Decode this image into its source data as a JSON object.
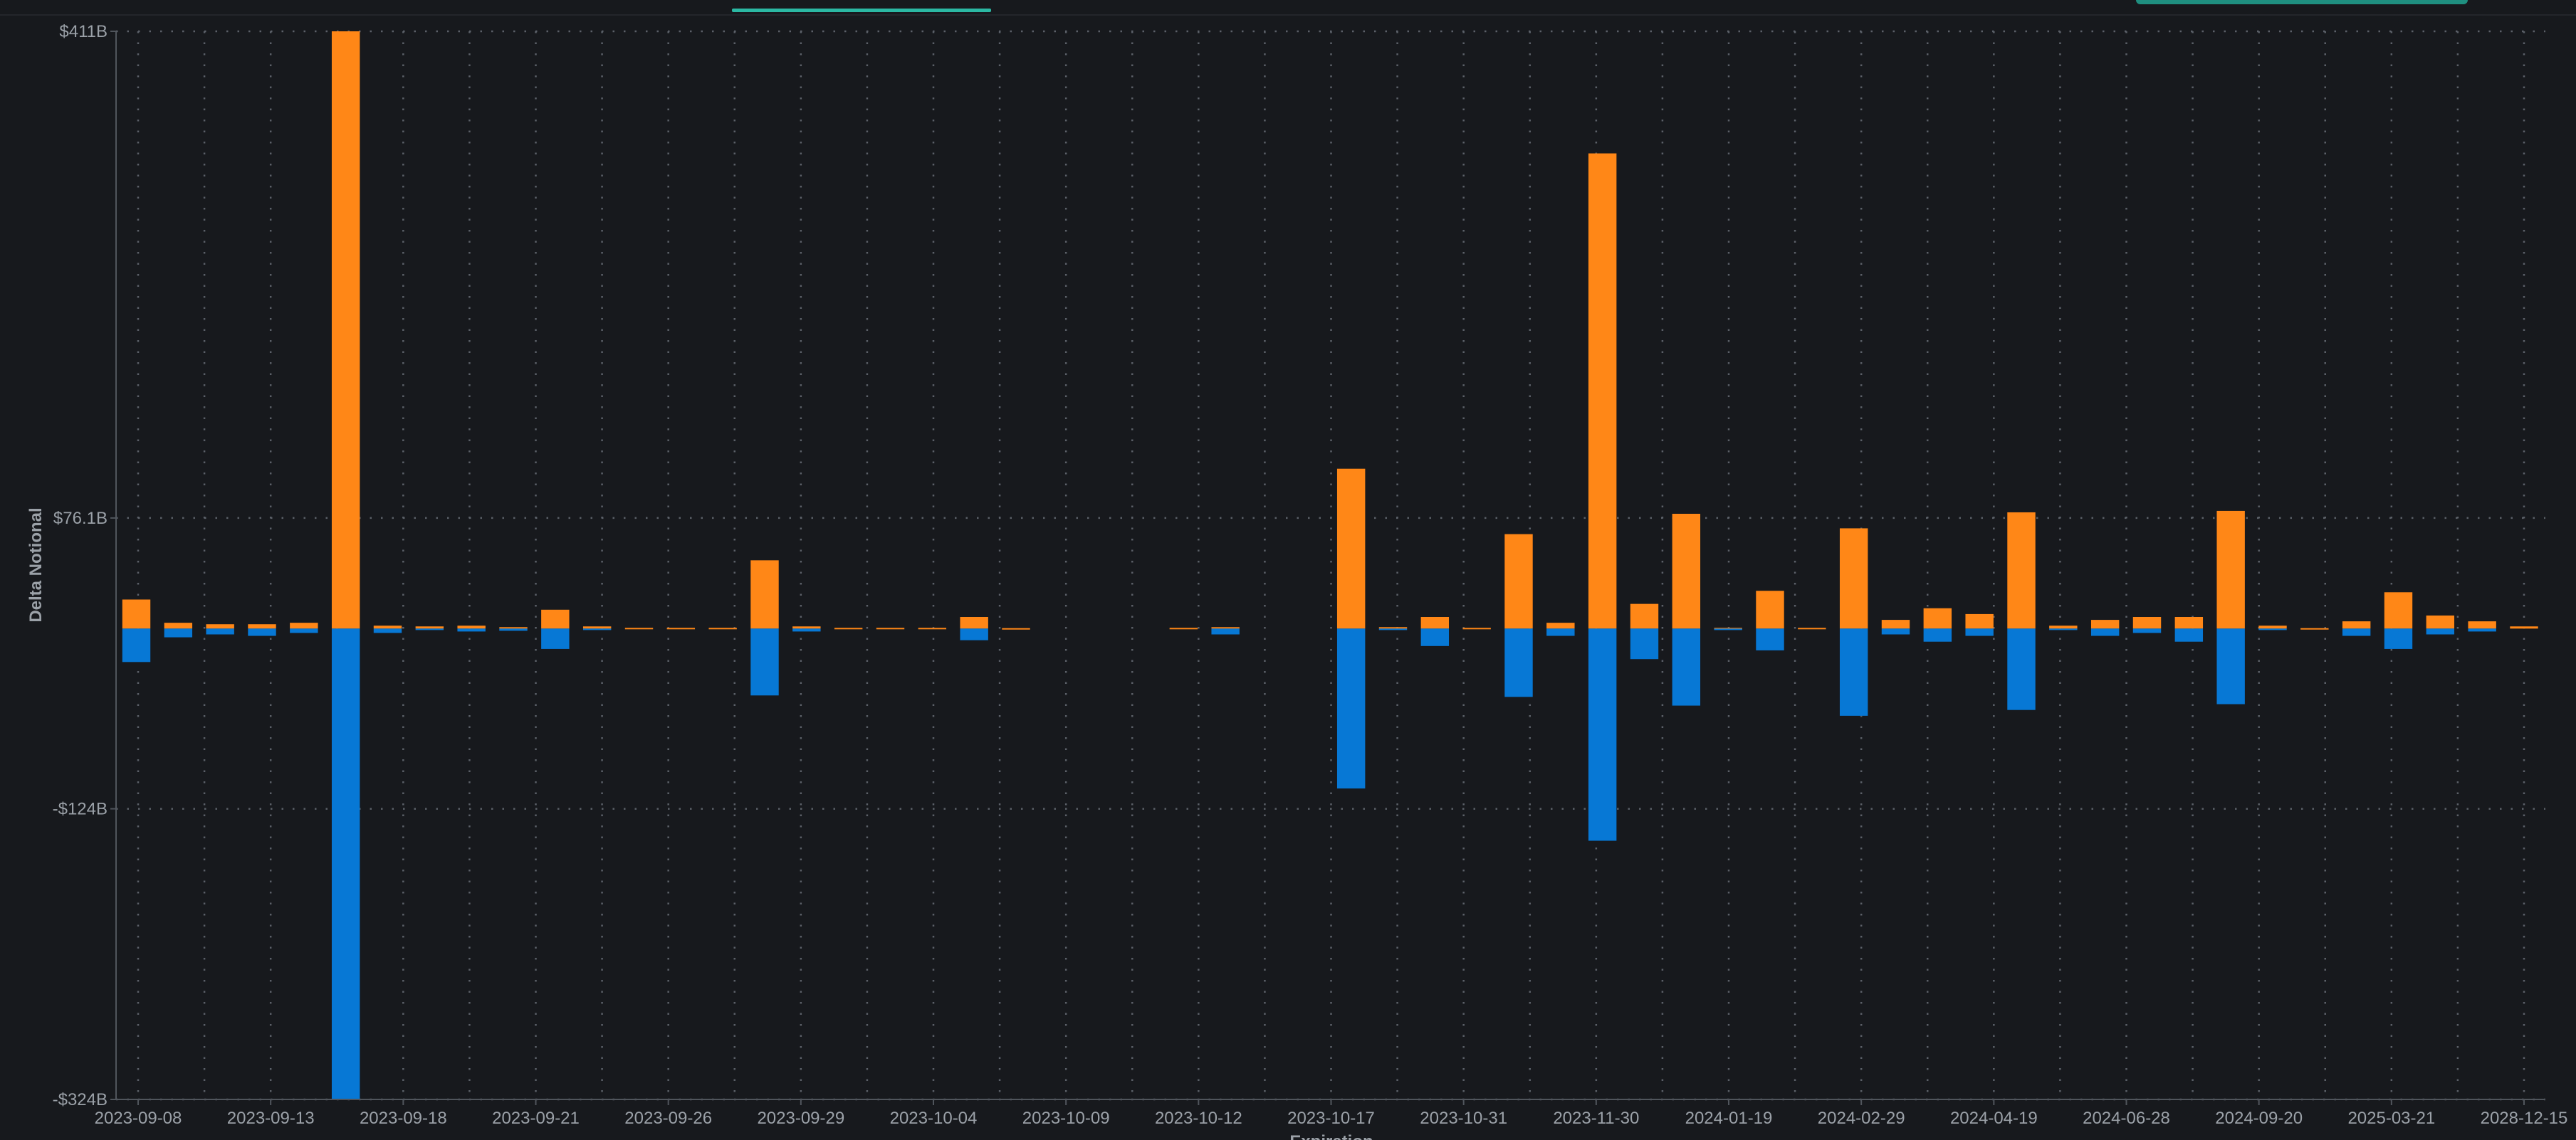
{
  "header": {
    "active_tab_label": "",
    "action_button_label": ""
  },
  "chart_data": {
    "type": "bar",
    "stacked_diverging": true,
    "ylabel": "Delta Notional",
    "xlabel": "Expiration",
    "ylim": [
      -324,
      411
    ],
    "y_unit": "B",
    "yticks": [
      {
        "value": 411,
        "label": "$411B"
      },
      {
        "value": 76.1,
        "label": "$76.1B"
      },
      {
        "value": -124,
        "label": "-$124B"
      },
      {
        "value": -324,
        "label": "-$324B"
      }
    ],
    "x_tick_labels": [
      "2023-09-08",
      "2023-09-13",
      "2023-09-18",
      "2023-09-21",
      "2023-09-26",
      "2023-09-29",
      "2023-10-04",
      "2023-10-09",
      "2023-10-12",
      "2023-10-17",
      "2023-10-31",
      "2023-11-30",
      "2024-01-19",
      "2024-02-29",
      "2024-04-19",
      "2024-06-28",
      "2024-09-20",
      "2025-03-21",
      "2028-12-15"
    ],
    "grid": true,
    "series": [
      {
        "color": "#ff8717",
        "values": [
          20,
          4,
          3,
          3,
          4,
          411,
          2,
          1.5,
          2,
          1,
          13,
          1.5,
          0.5,
          0.5,
          0.5,
          47,
          1.5,
          0.5,
          0.5,
          0.5,
          8,
          0.3,
          0,
          0,
          0,
          0.5,
          1,
          0,
          0,
          110,
          1,
          8,
          0.5,
          65,
          4,
          327,
          17,
          79,
          0.5,
          26,
          0.5,
          69,
          6,
          14,
          10,
          80,
          2,
          6,
          8,
          8,
          81,
          2,
          0.3,
          5,
          25,
          9,
          5,
          1.5
        ]
      },
      {
        "color": "#0778d5",
        "values": [
          -23,
          -6,
          -4,
          -5,
          -3,
          -324,
          -3,
          -1,
          -2,
          -1.5,
          -14,
          -1,
          0,
          0,
          0,
          -46,
          -2,
          0,
          0,
          0,
          -8,
          0,
          0,
          0,
          0,
          0,
          -4,
          0,
          0,
          -110,
          -1,
          -12,
          0,
          -47,
          -5,
          -146,
          -21,
          -53,
          -1,
          -15,
          0,
          -60,
          -4,
          -9,
          -5,
          -56,
          -1,
          -5,
          -3,
          -9,
          -52,
          -1,
          0,
          -5,
          -14,
          -4,
          -2,
          0
        ]
      }
    ]
  }
}
